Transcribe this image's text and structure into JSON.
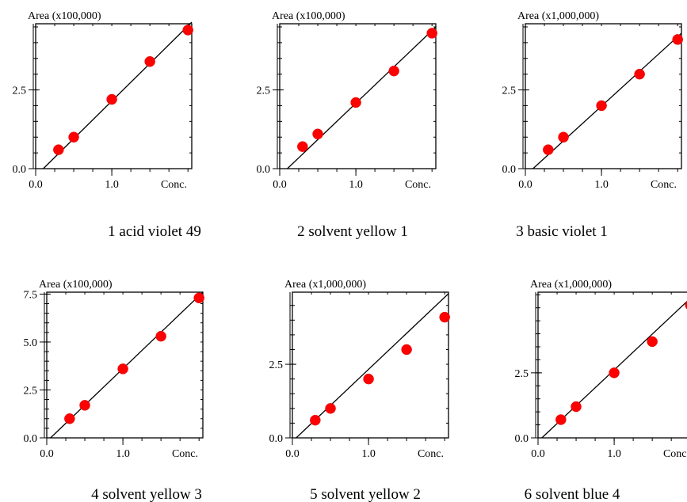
{
  "chart_data": [
    {
      "type": "scatter",
      "caption": "1 acid violet 49",
      "ylabel": "Area (x100,000)",
      "xlabel": "Conc.",
      "xticks": [
        "0.0",
        "1.0"
      ],
      "yticks": [
        "0.0",
        "2.5"
      ],
      "xlim": [
        0.0,
        2.05
      ],
      "ylim": [
        0.0,
        4.6
      ],
      "points": {
        "x": [
          0.3,
          0.5,
          1.0,
          1.5,
          2.0
        ],
        "y": [
          0.6,
          1.0,
          2.2,
          3.4,
          4.4
        ]
      },
      "fit": {
        "x": [
          0.1,
          2.05
        ],
        "y": [
          0.0,
          4.65
        ]
      },
      "marker_color": "#ff0000"
    },
    {
      "type": "scatter",
      "caption": "2 solvent yellow 1",
      "ylabel": "Area (x100,000)",
      "xlabel": "Conc.",
      "xticks": [
        "0.0",
        "1.0"
      ],
      "yticks": [
        "0.0",
        "2.5"
      ],
      "xlim": [
        0.0,
        2.05
      ],
      "ylim": [
        0.0,
        4.6
      ],
      "points": {
        "x": [
          0.3,
          0.5,
          1.0,
          1.5,
          2.0
        ],
        "y": [
          0.7,
          1.1,
          2.1,
          3.1,
          4.3
        ]
      },
      "fit": {
        "x": [
          0.1,
          2.05
        ],
        "y": [
          0.0,
          4.5
        ]
      },
      "marker_color": "#ff0000"
    },
    {
      "type": "scatter",
      "caption": "3 basic violet 1",
      "ylabel": "Area (x1,000,000)",
      "xlabel": "Conc.",
      "xticks": [
        "0.0",
        "1.0"
      ],
      "yticks": [
        "0.0",
        "2.5"
      ],
      "xlim": [
        0.0,
        2.05
      ],
      "ylim": [
        0.0,
        4.6
      ],
      "points": {
        "x": [
          0.3,
          0.5,
          1.0,
          1.5,
          2.0
        ],
        "y": [
          0.6,
          1.0,
          2.0,
          3.0,
          4.1
        ]
      },
      "fit": {
        "x": [
          0.1,
          2.05
        ],
        "y": [
          0.0,
          4.3
        ]
      },
      "marker_color": "#ff0000"
    },
    {
      "type": "scatter",
      "caption": "4 solvent yellow 3",
      "ylabel": "Area (x100,000)",
      "xlabel": "Conc.",
      "xticks": [
        "0.0",
        "1.0"
      ],
      "yticks": [
        "0.0",
        "2.5",
        "5.0",
        "7.5"
      ],
      "xlim": [
        0.0,
        2.05
      ],
      "ylim": [
        0.0,
        7.6
      ],
      "points": {
        "x": [
          0.3,
          0.5,
          1.0,
          1.5,
          2.0
        ],
        "y": [
          1.0,
          1.7,
          3.6,
          5.3,
          7.3
        ]
      },
      "fit": {
        "x": [
          0.05,
          2.05
        ],
        "y": [
          0.0,
          7.6
        ]
      },
      "marker_color": "#ff0000"
    },
    {
      "type": "scatter",
      "caption": "5 solvent yellow 2",
      "ylabel": "Area (x1,000,000)",
      "xlabel": "Conc.",
      "xticks": [
        "0.0",
        "1.0"
      ],
      "yticks": [
        "0.0",
        "2.5"
      ],
      "xlim": [
        0.0,
        2.05
      ],
      "ylim": [
        0.0,
        4.95
      ],
      "points": {
        "x": [
          0.3,
          0.5,
          1.0,
          1.5,
          2.0
        ],
        "y": [
          0.6,
          1.0,
          2.0,
          3.0,
          4.1
        ]
      },
      "fit": {
        "x": [
          0.05,
          2.05
        ],
        "y": [
          0.0,
          4.9
        ]
      },
      "marker_color": "#ff0000"
    },
    {
      "type": "scatter",
      "caption": "6 solvent blue 4",
      "ylabel": "Area (x1,000,000)",
      "xlabel": "Conc.",
      "xticks": [
        "0.0",
        "1.0"
      ],
      "yticks": [
        "0.0",
        "2.5"
      ],
      "xlim": [
        0.0,
        2.05
      ],
      "ylim": [
        0.0,
        5.6
      ],
      "points": {
        "x": [
          0.3,
          0.5,
          1.0,
          1.5,
          2.0
        ],
        "y": [
          0.7,
          1.2,
          2.5,
          3.7,
          5.1
        ]
      },
      "fit": {
        "x": [
          0.05,
          2.05
        ],
        "y": [
          0.0,
          5.5
        ]
      },
      "marker_color": "#ff0000"
    }
  ]
}
